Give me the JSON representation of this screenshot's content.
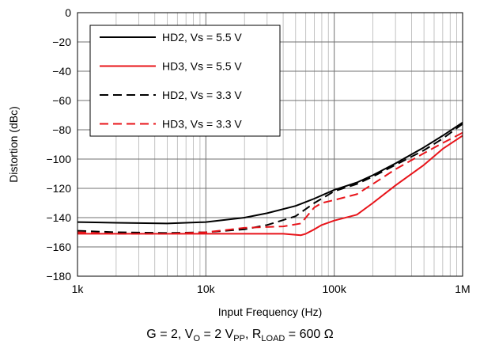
{
  "chart_data": {
    "type": "line",
    "title": "",
    "xlabel": "Input Frequency (Hz)",
    "ylabel": "Distortion (dBc)",
    "xscale": "log",
    "xlim": [
      1000,
      1000000
    ],
    "ylim": [
      -180,
      0
    ],
    "grid": true,
    "legend_position": "top-left",
    "x_ticks": [
      {
        "value": 1000,
        "label": "1k"
      },
      {
        "value": 10000,
        "label": "10k"
      },
      {
        "value": 100000,
        "label": "100k"
      },
      {
        "value": 1000000,
        "label": "1M"
      }
    ],
    "y_ticks": [
      0,
      -20,
      -40,
      -60,
      -80,
      -100,
      -120,
      -140,
      -160,
      -180
    ],
    "series": [
      {
        "name": "HD2, Vs = 5.5 V",
        "color": "#000000",
        "dash": "solid",
        "x": [
          1000,
          2000,
          5000,
          10000,
          20000,
          30000,
          50000,
          70000,
          100000,
          150000,
          200000,
          300000,
          500000,
          700000,
          1000000
        ],
        "y": [
          -143,
          -143.5,
          -144,
          -143,
          -140,
          -137,
          -132,
          -127,
          -121,
          -116,
          -111,
          -103,
          -92,
          -84,
          -75
        ]
      },
      {
        "name": "HD3, Vs = 5.5 V",
        "color": "#e8141a",
        "dash": "solid",
        "x": [
          1000,
          2000,
          5000,
          10000,
          20000,
          40000,
          55000,
          60000,
          70000,
          80000,
          100000,
          150000,
          200000,
          300000,
          500000,
          700000,
          1000000
        ],
        "y": [
          -151,
          -151,
          -151,
          -151,
          -151,
          -151,
          -152,
          -151,
          -148,
          -145,
          -142,
          -138,
          -130,
          -118,
          -104,
          -93,
          -84
        ]
      },
      {
        "name": "HD2, Vs = 3.3 V",
        "color": "#000000",
        "dash": "dashed",
        "x": [
          1000,
          2000,
          5000,
          10000,
          20000,
          30000,
          50000,
          70000,
          100000,
          150000,
          200000,
          300000,
          500000,
          700000,
          1000000
        ],
        "y": [
          -149,
          -150,
          -150.5,
          -150,
          -148,
          -145,
          -139,
          -130,
          -122,
          -117,
          -112,
          -104,
          -94,
          -86,
          -76
        ]
      },
      {
        "name": "HD3, Vs = 3.3 V",
        "color": "#e8141a",
        "dash": "dashed",
        "x": [
          1000,
          2000,
          5000,
          10000,
          20000,
          40000,
          55000,
          60000,
          70000,
          80000,
          100000,
          150000,
          200000,
          300000,
          500000,
          700000,
          1000000
        ],
        "y": [
          -150,
          -151,
          -151,
          -150,
          -147,
          -146,
          -144,
          -140,
          -133,
          -130,
          -128,
          -124,
          -117,
          -107,
          -96,
          -89,
          -82
        ]
      }
    ]
  },
  "caption": {
    "g": "G = 2, V",
    "o_sub": "O",
    "vo": " = 2 V",
    "pp_sub": "PP",
    "r": ", R",
    "load_sub": "LOAD",
    "rv": " = 600 Ω"
  }
}
